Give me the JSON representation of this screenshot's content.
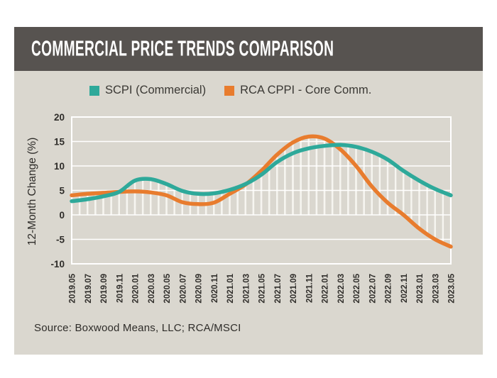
{
  "header": {
    "title": "COMMERCIAL PRICE TRENDS COMPARISON"
  },
  "legend": [
    {
      "label": "SCPI (Commercial)",
      "color": "#2EA99A"
    },
    {
      "label": "RCA CPPI - Core Comm.",
      "color": "#E87C2E"
    }
  ],
  "source_note": "Source: Boxwood Means,  LLC; RCA/MSCI",
  "colors": {
    "page_background": "#FFFFFF",
    "panel_background": "#DAD7CF",
    "header_bar": "#575350",
    "header_text": "#FFFFFF",
    "grid_lines": "#FFFFFF",
    "hatch_fill": "#F6F5F0",
    "axis_text": "#2E2C29",
    "scpi_line": "#2EA99A",
    "rca_line": "#E87C2E"
  },
  "chart_data": {
    "type": "line",
    "title": "",
    "xlabel": "",
    "ylabel": "12-Month Change (%)",
    "ylim": [
      -10,
      20
    ],
    "yticks": [
      20,
      15,
      10,
      5,
      0,
      -5,
      -10
    ],
    "grid": "horizontal white lines, white plot frame",
    "area_fill": "white vertical monthly hatch between each curve and the zero line",
    "legend_position": "top",
    "categories": [
      "2019.05",
      "2019.07",
      "2019.09",
      "2019.11",
      "2020.01",
      "2020.03",
      "2020.05",
      "2020.07",
      "2020.09",
      "2020.11",
      "2021.01",
      "2021.03",
      "2021.05",
      "2021.07",
      "2021.09",
      "2021.11",
      "2022.01",
      "2022.03",
      "2022.05",
      "2022.07",
      "2022.09",
      "2022.11",
      "2023.01",
      "2023.03",
      "2023.05"
    ],
    "series": [
      {
        "name": "SCPI (Commercial)",
        "color": "#2EA99A",
        "values": [
          2.8,
          3.2,
          3.8,
          4.7,
          7.0,
          7.3,
          6.3,
          4.9,
          4.3,
          4.4,
          5.1,
          6.3,
          8.2,
          10.8,
          12.6,
          13.6,
          14.1,
          14.3,
          13.9,
          12.9,
          11.3,
          9.0,
          7.0,
          5.3,
          4.0
        ]
      },
      {
        "name": "RCA CPPI - Core Comm.",
        "color": "#E87C2E",
        "values": [
          4.0,
          4.3,
          4.5,
          4.7,
          4.8,
          4.6,
          4.0,
          2.6,
          2.2,
          2.5,
          4.3,
          6.2,
          9.0,
          12.3,
          14.8,
          16.0,
          15.6,
          13.4,
          10.0,
          5.8,
          2.5,
          0.0,
          -2.8,
          -5.0,
          -6.5
        ]
      }
    ]
  }
}
